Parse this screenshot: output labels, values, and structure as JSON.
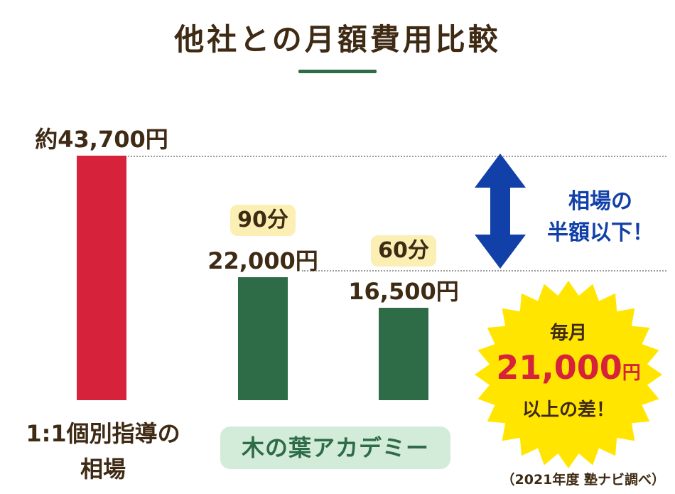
{
  "title": "他社との月額費用比較",
  "chart_data": {
    "type": "bar",
    "categories": [
      "1:1個別指導の相場",
      "木の葉アカデミー",
      "木の葉アカデミー"
    ],
    "values": [
      43700,
      22000,
      16500
    ],
    "value_labels": [
      "約43,700円",
      "22,000円",
      "16,500円"
    ],
    "duration_labels": [
      "",
      "90分",
      "60分"
    ],
    "colors": [
      "#d6223a",
      "#2e6b47",
      "#2e6b47"
    ],
    "ylim": [
      0,
      43700
    ],
    "grid": false
  },
  "categories_display": {
    "market_line1": "1:1個別指導の",
    "market_line2": "相場",
    "academy": "木の葉アカデミー"
  },
  "comparison": {
    "half_line1": "相場の",
    "half_line2": "半額以下！",
    "arrow_color": "#1140a8"
  },
  "burst": {
    "line1": "毎月",
    "amount": "21,000",
    "unit": "円",
    "line3": "以上の差！",
    "color": "#ffe500"
  },
  "source_note": "（2021年度 塾ナビ調べ）"
}
